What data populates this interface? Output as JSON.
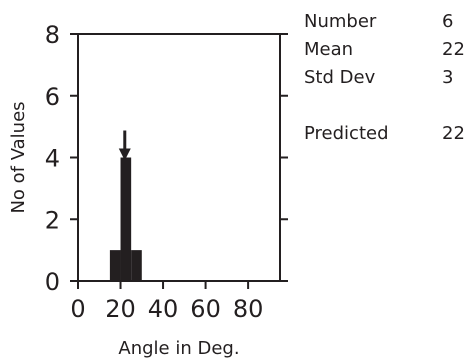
{
  "chart_data": {
    "type": "bar",
    "xlabel": "Angle in Deg.",
    "ylabel": "No of Values",
    "xlim": [
      0,
      95
    ],
    "ylim": [
      0,
      8
    ],
    "xticks": [
      0,
      20,
      40,
      60,
      80
    ],
    "yticks": [
      0,
      2,
      4,
      6,
      8
    ],
    "bins": [
      {
        "x0": 15,
        "x1": 20,
        "count": 1
      },
      {
        "x0": 20,
        "x1": 25,
        "count": 4
      },
      {
        "x0": 25,
        "x1": 30,
        "count": 1
      }
    ],
    "predicted_marker": {
      "x": 22
    },
    "stats": [
      {
        "label": "Number",
        "value": "6"
      },
      {
        "label": "Mean",
        "value": "22"
      },
      {
        "label": "Std Dev",
        "value": "3"
      },
      {
        "label": "Predicted",
        "value": "22"
      }
    ],
    "bar_color": "#231f20",
    "grid": false,
    "legend": "top-right"
  }
}
